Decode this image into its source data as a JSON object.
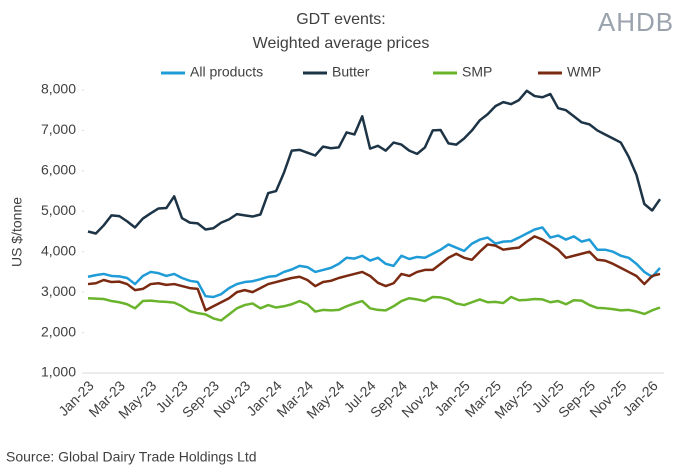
{
  "chart_data": {
    "type": "line",
    "title": "GDT events:",
    "subtitle": "Weighted average prices",
    "logo": "AHDB",
    "y_label": "US $/tonne",
    "source": "Source: Global Dairy Trade Holdings Ltd",
    "categories": [
      "Jan-23",
      null,
      null,
      null,
      "Mar-23",
      null,
      null,
      null,
      "May-23",
      null,
      null,
      null,
      "Jul-23",
      null,
      null,
      null,
      "Sep-23",
      null,
      null,
      null,
      "Nov-23",
      null,
      null,
      null,
      "Jan-24",
      null,
      null,
      null,
      "Mar-24",
      null,
      null,
      null,
      "May-24",
      null,
      null,
      null,
      "Jul-24",
      null,
      null,
      null,
      "Sep-24",
      null,
      null,
      null,
      "Nov-24",
      null,
      null,
      null,
      "Jan-25",
      null,
      null,
      null,
      "Mar-25",
      null,
      null,
      null,
      "May-25",
      null,
      null,
      null,
      "Jul-25",
      null,
      null,
      null,
      "Sep-25",
      null,
      null,
      null,
      "Nov-25",
      null,
      null,
      null,
      "Jan-26",
      null
    ],
    "series": [
      {
        "name": "All products",
        "color": "#1f9bd7",
        "values": [
          3380,
          3420,
          3450,
          3400,
          3390,
          3350,
          3200,
          3400,
          3500,
          3470,
          3400,
          3450,
          3350,
          3280,
          3250,
          2900,
          2880,
          2950,
          3100,
          3200,
          3250,
          3270,
          3320,
          3380,
          3400,
          3500,
          3560,
          3650,
          3620,
          3500,
          3550,
          3600,
          3700,
          3850,
          3830,
          3900,
          3780,
          3850,
          3700,
          3650,
          3900,
          3820,
          3870,
          3850,
          3950,
          4050,
          4180,
          4100,
          4020,
          4200,
          4300,
          4350,
          4200,
          4250,
          4260,
          4350,
          4450,
          4550,
          4600,
          4350,
          4400,
          4300,
          4380,
          4250,
          4300,
          4050,
          4050,
          4000,
          3900,
          3850,
          3700,
          3500,
          3380,
          3600
        ]
      },
      {
        "name": "Butter",
        "color": "#1d3446",
        "values": [
          4500,
          4450,
          4650,
          4900,
          4880,
          4750,
          4600,
          4820,
          4950,
          5070,
          5080,
          5370,
          4830,
          4720,
          4700,
          4550,
          4580,
          4720,
          4800,
          4930,
          4900,
          4870,
          4920,
          5450,
          5500,
          5950,
          6500,
          6520,
          6450,
          6380,
          6600,
          6560,
          6580,
          6950,
          6900,
          7350,
          6550,
          6620,
          6500,
          6700,
          6650,
          6500,
          6420,
          6580,
          7000,
          7010,
          6680,
          6650,
          6800,
          7000,
          7250,
          7400,
          7600,
          7700,
          7650,
          7750,
          7980,
          7850,
          7820,
          7900,
          7550,
          7500,
          7350,
          7200,
          7150,
          7000,
          6900,
          6800,
          6700,
          6350,
          5900,
          5180,
          5020,
          5300
        ]
      },
      {
        "name": "SMP",
        "color": "#6ab42d",
        "values": [
          2850,
          2840,
          2830,
          2780,
          2750,
          2700,
          2600,
          2780,
          2790,
          2770,
          2760,
          2740,
          2650,
          2530,
          2480,
          2450,
          2350,
          2300,
          2450,
          2600,
          2680,
          2720,
          2600,
          2680,
          2620,
          2650,
          2700,
          2780,
          2700,
          2520,
          2560,
          2550,
          2560,
          2650,
          2720,
          2780,
          2600,
          2560,
          2550,
          2650,
          2780,
          2850,
          2820,
          2780,
          2880,
          2870,
          2820,
          2720,
          2680,
          2750,
          2820,
          2750,
          2760,
          2730,
          2880,
          2800,
          2810,
          2830,
          2820,
          2750,
          2780,
          2700,
          2800,
          2790,
          2680,
          2610,
          2600,
          2580,
          2550,
          2560,
          2520,
          2460,
          2550,
          2620
        ]
      },
      {
        "name": "WMP",
        "color": "#7b2a12",
        "values": [
          3200,
          3220,
          3300,
          3250,
          3260,
          3200,
          3050,
          3080,
          3200,
          3220,
          3180,
          3200,
          3150,
          3100,
          3080,
          2550,
          2650,
          2750,
          2850,
          3000,
          3050,
          3000,
          3100,
          3200,
          3250,
          3300,
          3350,
          3380,
          3300,
          3150,
          3250,
          3280,
          3350,
          3400,
          3450,
          3500,
          3400,
          3230,
          3150,
          3220,
          3450,
          3400,
          3500,
          3550,
          3550,
          3700,
          3850,
          3950,
          3850,
          3800,
          4000,
          4180,
          4150,
          4050,
          4080,
          4100,
          4250,
          4380,
          4300,
          4180,
          4050,
          3850,
          3900,
          3950,
          4000,
          3800,
          3780,
          3700,
          3600,
          3500,
          3400,
          3200,
          3400,
          3450
        ]
      }
    ],
    "ylim": [
      1000,
      8000
    ],
    "yticks": [
      {
        "value": 1000,
        "label": "1,000"
      },
      {
        "value": 2000,
        "label": "2,000"
      },
      {
        "value": 3000,
        "label": "3,000"
      },
      {
        "value": 4000,
        "label": "4,000"
      },
      {
        "value": 5000,
        "label": "5,000"
      },
      {
        "value": 6000,
        "label": "6,000"
      },
      {
        "value": 7000,
        "label": "7,000"
      },
      {
        "value": 8000,
        "label": "8,000"
      }
    ],
    "grid": false,
    "legend": "top"
  }
}
